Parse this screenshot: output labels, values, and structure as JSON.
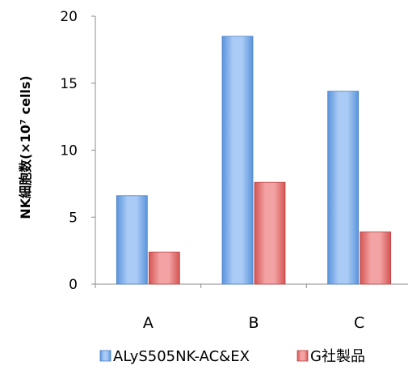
{
  "chart_data": {
    "type": "bar",
    "categories": [
      "A",
      "B",
      "C"
    ],
    "series": [
      {
        "name": "ALyS505NK-AC&EX",
        "values": [
          6.6,
          18.5,
          14.4
        ],
        "color": "#6fa8e8"
      },
      {
        "name": "G社製品",
        "values": [
          2.4,
          7.6,
          3.9
        ],
        "color": "#e66c6c"
      }
    ],
    "ylabel": "NK細胞数(×10⁷ cells)",
    "xlabel": "",
    "ylim": [
      0,
      20
    ],
    "yticks": [
      "0",
      "5",
      "10",
      "15",
      "20"
    ],
    "grid": false,
    "legend_position": "bottom"
  }
}
